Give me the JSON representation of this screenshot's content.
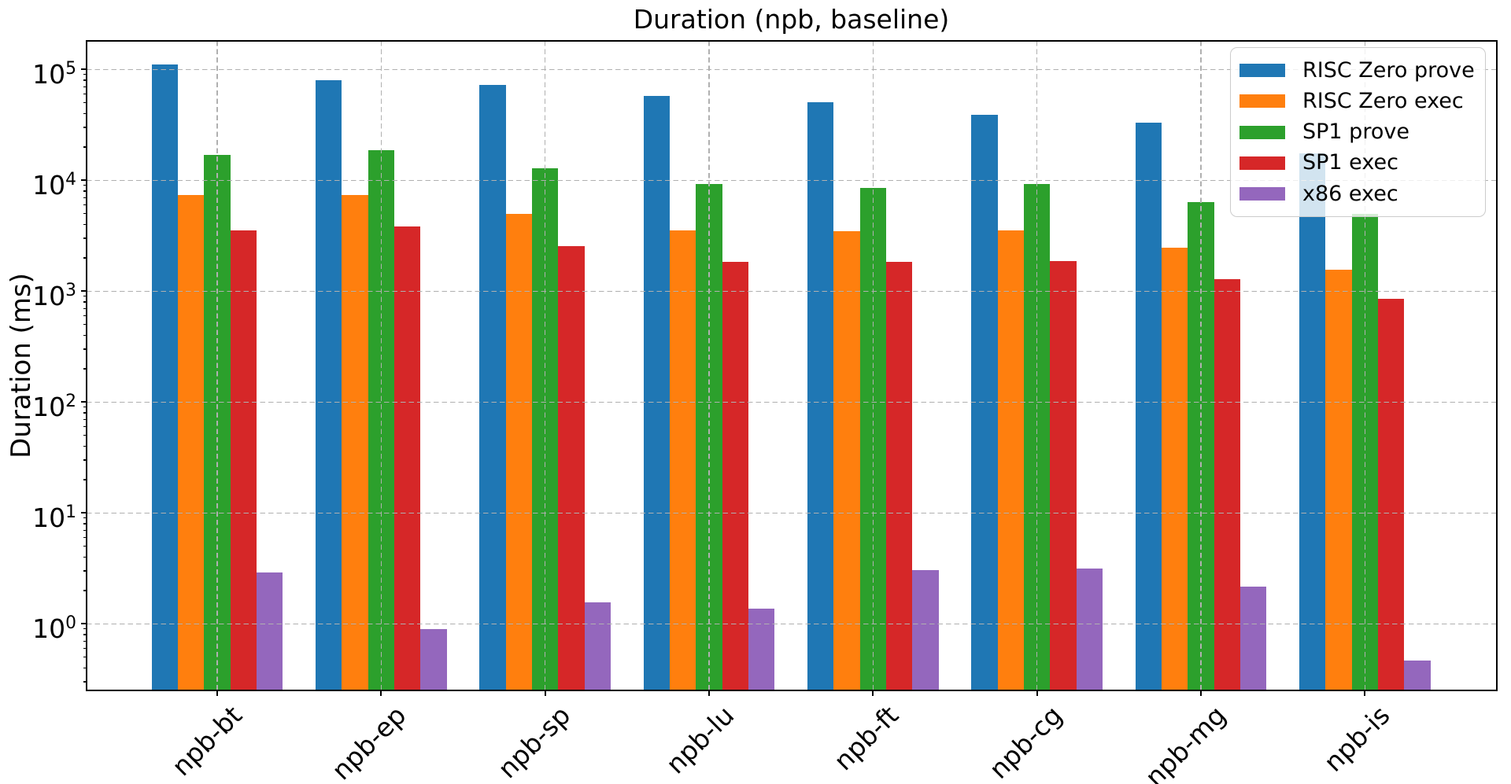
{
  "figure": {
    "background": "#ffffff"
  },
  "colors": {
    "axis": "#000000",
    "grid": "#b0b0b0",
    "legend_border": "#cccccc",
    "text": "#000000"
  },
  "chart_data": {
    "type": "bar",
    "title": "Duration (npb, baseline)",
    "xlabel": "",
    "ylabel": "Duration (ms)",
    "yscale": "log",
    "ylim": [
      0.25,
      180000
    ],
    "ytick_exponents": [
      0,
      1,
      2,
      3,
      4,
      5
    ],
    "ytick_labels": [
      "10⁰",
      "10¹",
      "10²",
      "10³",
      "10⁴",
      "10⁵"
    ],
    "grid": true,
    "legend_position": "upper right",
    "categories": [
      "npb-bt",
      "npb-ep",
      "npb-sp",
      "npb-lu",
      "npb-ft",
      "npb-cg",
      "npb-mg",
      "npb-is"
    ],
    "series": [
      {
        "name": "RISC Zero prove",
        "color": "#1f77b4",
        "values": [
          110000,
          80000,
          72500,
          58000,
          50500,
          39000,
          33000,
          17500
        ]
      },
      {
        "name": "RISC Zero exec",
        "color": "#ff7f0e",
        "values": [
          7400,
          7400,
          5000,
          3550,
          3500,
          3550,
          2450,
          1550
        ]
      },
      {
        "name": "SP1 prove",
        "color": "#2ca02c",
        "values": [
          17000,
          18800,
          12900,
          9200,
          8500,
          9200,
          6400,
          4950
        ]
      },
      {
        "name": "SP1 exec",
        "color": "#d62728",
        "values": [
          3520,
          3820,
          2540,
          1840,
          1830,
          1870,
          1280,
          850
        ]
      },
      {
        "name": "x86 exec",
        "color": "#9467bd",
        "values": [
          2.9,
          0.9,
          1.55,
          1.37,
          3.05,
          3.15,
          2.15,
          0.47
        ]
      }
    ]
  }
}
